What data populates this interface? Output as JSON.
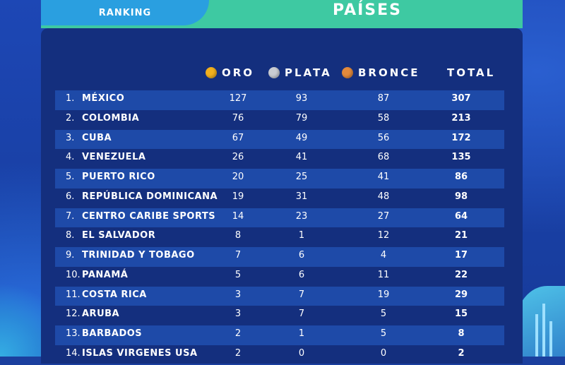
{
  "header": {
    "tab_label": "RANKING",
    "title": "PAÍSES"
  },
  "columns": {
    "gold": "ORO",
    "silver": "PLATA",
    "bronze": "BRONCE",
    "total": "TOTAL"
  },
  "colors": {
    "gold": "#f2b01e",
    "silver": "#c9ccd2",
    "bronze": "#e38a3c",
    "header_green": "#3ec9a2",
    "tab_blue": "#2a9fe0",
    "panel": "#142f7e",
    "row_shade": "#1e4aa8"
  },
  "rows": [
    {
      "rank": "1.",
      "country": "MÉXICO",
      "gold": "127",
      "silver": "93",
      "bronze": "87",
      "total": "307"
    },
    {
      "rank": "2.",
      "country": "COLOMBIA",
      "gold": "76",
      "silver": "79",
      "bronze": "58",
      "total": "213"
    },
    {
      "rank": "3.",
      "country": "CUBA",
      "gold": "67",
      "silver": "49",
      "bronze": "56",
      "total": "172"
    },
    {
      "rank": "4.",
      "country": "VENEZUELA",
      "gold": "26",
      "silver": "41",
      "bronze": "68",
      "total": "135"
    },
    {
      "rank": "5.",
      "country": "PUERTO RICO",
      "gold": "20",
      "silver": "25",
      "bronze": "41",
      "total": "86"
    },
    {
      "rank": "6.",
      "country": "REPÚBLICA DOMINICANA",
      "gold": "19",
      "silver": "31",
      "bronze": "48",
      "total": "98"
    },
    {
      "rank": "7.",
      "country": "CENTRO CARIBE SPORTS",
      "gold": "14",
      "silver": "23",
      "bronze": "27",
      "total": "64"
    },
    {
      "rank": "8.",
      "country": "EL SALVADOR",
      "gold": "8",
      "silver": "1",
      "bronze": "12",
      "total": "21"
    },
    {
      "rank": "9.",
      "country": "TRINIDAD Y TOBAGO",
      "gold": "7",
      "silver": "6",
      "bronze": "4",
      "total": "17"
    },
    {
      "rank": "10.",
      "country": "PANAMÁ",
      "gold": "5",
      "silver": "6",
      "bronze": "11",
      "total": "22"
    },
    {
      "rank": "11.",
      "country": "COSTA RICA",
      "gold": "3",
      "silver": "7",
      "bronze": "19",
      "total": "29"
    },
    {
      "rank": "12.",
      "country": "ARUBA",
      "gold": "3",
      "silver": "7",
      "bronze": "5",
      "total": "15"
    },
    {
      "rank": "13.",
      "country": "BARBADOS",
      "gold": "2",
      "silver": "1",
      "bronze": "5",
      "total": "8"
    },
    {
      "rank": "14.",
      "country": "ISLAS VIRGENES USA",
      "gold": "2",
      "silver": "0",
      "bronze": "0",
      "total": "2"
    }
  ]
}
